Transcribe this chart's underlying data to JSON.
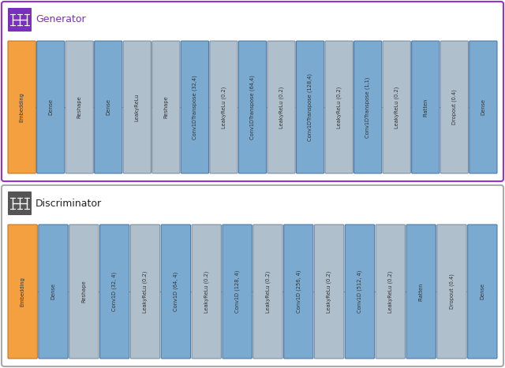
{
  "generator": {
    "title": "Generator",
    "title_color": "#7B2FBE",
    "border_color": "#9B30D0",
    "icon_bg": "#7B2FBE",
    "layers": [
      {
        "label": "Embedding",
        "color": "#F5A040",
        "border": "#C47820"
      },
      {
        "label": "Dense",
        "color": "#7AAAD0",
        "border": "#4A7AAA"
      },
      {
        "label": "Reshape",
        "color": "#B0BFCC",
        "border": "#8090A0"
      },
      {
        "label": "Dense",
        "color": "#7AAAD0",
        "border": "#4A7AAA"
      },
      {
        "label": "LeakyReLu",
        "color": "#B0BFCC",
        "border": "#8090A0"
      },
      {
        "label": "Reshape",
        "color": "#B0BFCC",
        "border": "#8090A0"
      },
      {
        "label": "Conv1DTranspose (32,4)",
        "color": "#7AAAD0",
        "border": "#4A7AAA"
      },
      {
        "label": "LeakyReLu (0.2)",
        "color": "#B0BFCC",
        "border": "#8090A0"
      },
      {
        "label": "Conv1DTranspose (64,4)",
        "color": "#7AAAD0",
        "border": "#4A7AAA"
      },
      {
        "label": "LeakyReLu (0.2)",
        "color": "#B0BFCC",
        "border": "#8090A0"
      },
      {
        "label": "Conv1DTranspose (128,4)",
        "color": "#7AAAD0",
        "border": "#4A7AAA"
      },
      {
        "label": "LeakyReLu (0.2)",
        "color": "#B0BFCC",
        "border": "#8090A0"
      },
      {
        "label": "Conv1DTranspose (1,1)",
        "color": "#7AAAD0",
        "border": "#4A7AAA"
      },
      {
        "label": "LeakyReLu (0.2)",
        "color": "#B0BFCC",
        "border": "#8090A0"
      },
      {
        "label": "Flatten",
        "color": "#7AAAD0",
        "border": "#4A7AAA"
      },
      {
        "label": "Dropout (0.4)",
        "color": "#B0BFCC",
        "border": "#8090A0"
      },
      {
        "label": "Dense",
        "color": "#7AAAD0",
        "border": "#4A7AAA"
      }
    ]
  },
  "discriminator": {
    "title": "Discriminator",
    "title_color": "#222222",
    "border_color": "#AAAAAA",
    "icon_bg": "#555555",
    "layers": [
      {
        "label": "Embedding",
        "color": "#F5A040",
        "border": "#C47820"
      },
      {
        "label": "Dense",
        "color": "#7AAAD0",
        "border": "#4A7AAA"
      },
      {
        "label": "Reshape",
        "color": "#B0BFCC",
        "border": "#8090A0"
      },
      {
        "label": "Conv1D (32, 4)",
        "color": "#7AAAD0",
        "border": "#4A7AAA"
      },
      {
        "label": "LeakyReLu (0.2)",
        "color": "#B0BFCC",
        "border": "#8090A0"
      },
      {
        "label": "Conv1D (64, 4)",
        "color": "#7AAAD0",
        "border": "#4A7AAA"
      },
      {
        "label": "LeakyReLu (0.2)",
        "color": "#B0BFCC",
        "border": "#8090A0"
      },
      {
        "label": "Conv1D (128, 4)",
        "color": "#7AAAD0",
        "border": "#4A7AAA"
      },
      {
        "label": "LeakyReLu (0.2)",
        "color": "#B0BFCC",
        "border": "#8090A0"
      },
      {
        "label": "Conv1D (256, 4)",
        "color": "#7AAAD0",
        "border": "#4A7AAA"
      },
      {
        "label": "LeakyReLu (0.2)",
        "color": "#B0BFCC",
        "border": "#8090A0"
      },
      {
        "label": "Conv1D (512, 4)",
        "color": "#7AAAD0",
        "border": "#4A7AAA"
      },
      {
        "label": "LeakyReLu (0.2)",
        "color": "#B0BFCC",
        "border": "#8090A0"
      },
      {
        "label": "Flatten",
        "color": "#7AAAD0",
        "border": "#4A7AAA"
      },
      {
        "label": "Dropout (0.4)",
        "color": "#B0BFCC",
        "border": "#8090A0"
      },
      {
        "label": "Dense",
        "color": "#7AAAD0",
        "border": "#4A7AAA"
      }
    ]
  },
  "bg_color": "#FFFFFF",
  "connector_color": "#999999",
  "text_color": "#333333",
  "fig_width": 6.4,
  "fig_height": 4.67,
  "dpi": 100
}
